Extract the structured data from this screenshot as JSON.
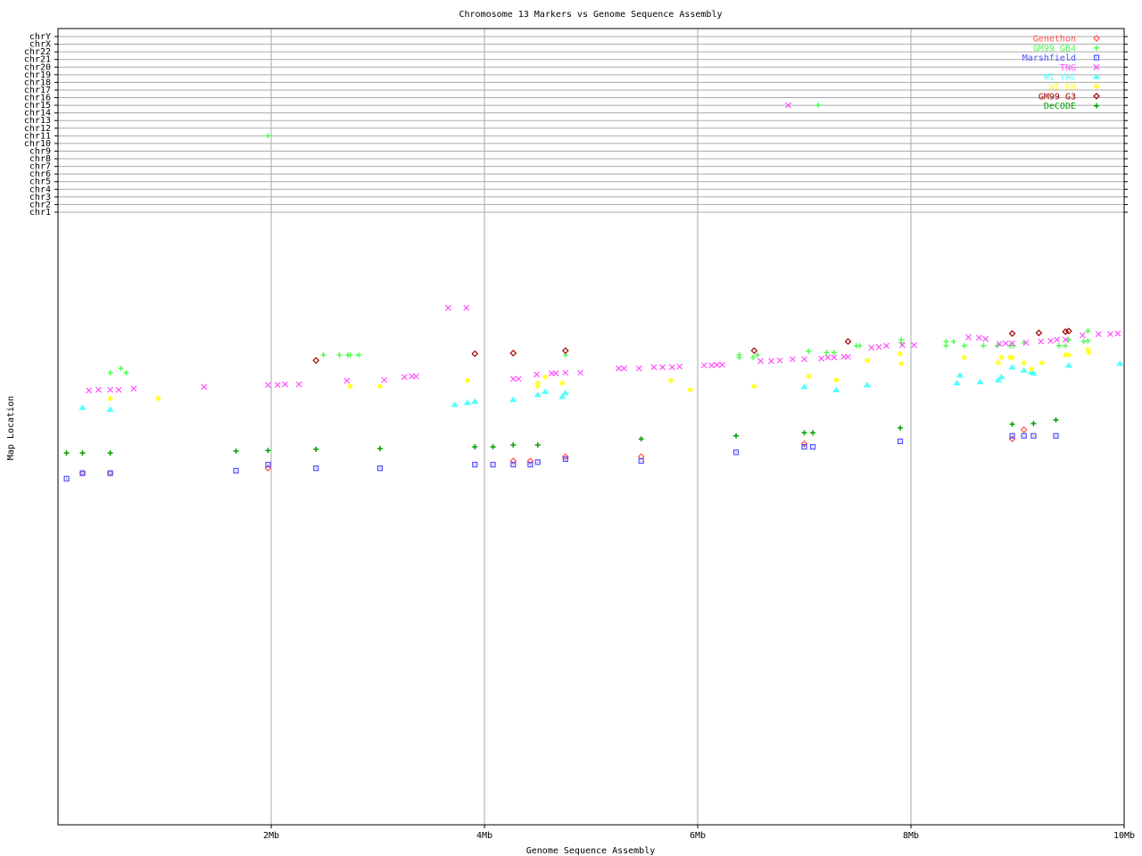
{
  "chart_data": {
    "type": "scatter",
    "title": "Chromosome 13 Markers vs Genome Sequence Assembly",
    "xlabel": "Genome Sequence Assembly",
    "ylabel": "Map Location",
    "xlim": [
      0,
      10
    ],
    "x_unit": "Mb",
    "x_ticks": [
      {
        "value": 2,
        "label": "2Mb"
      },
      {
        "value": 4,
        "label": "4Mb"
      },
      {
        "value": 6,
        "label": "6Mb"
      },
      {
        "value": 8,
        "label": "8Mb"
      },
      {
        "value": 10,
        "label": "10Mb"
      }
    ],
    "chromosome_rows": [
      "chrY",
      "chrX",
      "chr22",
      "chr21",
      "chr20",
      "chr19",
      "chr18",
      "chr17",
      "chr16",
      "chr15",
      "chr14",
      "chr13",
      "chr12",
      "chr11",
      "chr10",
      "chr9",
      "chr8",
      "chr7",
      "chr6",
      "chr5",
      "chr4",
      "chr3",
      "chr2",
      "chr1"
    ],
    "map_location_ylim": [
      0,
      100
    ],
    "grid": "vertical at x ticks; horizontal at chromosome rows",
    "legend_position": "top-right",
    "series": [
      {
        "name": "Genethon",
        "color": "#ff5050",
        "marker": "diamond",
        "points": [
          [
            0.23,
            57.4
          ],
          [
            0.49,
            57.4
          ],
          [
            1.97,
            58.2
          ],
          [
            4.27,
            59.4
          ],
          [
            4.43,
            59.4
          ],
          [
            4.76,
            60.1
          ],
          [
            5.47,
            60.1
          ],
          [
            7.0,
            62.2
          ],
          [
            8.95,
            63.0
          ],
          [
            9.06,
            64.5
          ]
        ]
      },
      {
        "name": "GM99 GB4",
        "color": "#50ff50",
        "marker": "plus",
        "points": [
          [
            0.49,
            73.8
          ],
          [
            0.59,
            74.5
          ],
          [
            0.64,
            73.8
          ],
          [
            2.49,
            76.7
          ],
          [
            2.64,
            76.7
          ],
          [
            2.72,
            76.7
          ],
          [
            2.74,
            76.7
          ],
          [
            2.82,
            76.7
          ],
          [
            4.76,
            76.7
          ],
          [
            6.39,
            76.7
          ],
          [
            6.39,
            76.3
          ],
          [
            6.52,
            76.3
          ],
          [
            6.56,
            76.7
          ],
          [
            7.04,
            77.3
          ],
          [
            7.21,
            77.1
          ],
          [
            7.28,
            77.1
          ],
          [
            7.49,
            78.2
          ],
          [
            7.52,
            78.2
          ],
          [
            7.91,
            79.2
          ],
          [
            7.91,
            78.7
          ],
          [
            8.33,
            78.9
          ],
          [
            8.33,
            78.2
          ],
          [
            8.4,
            78.9
          ],
          [
            8.5,
            78.2
          ],
          [
            8.68,
            78.2
          ],
          [
            8.81,
            78.2
          ],
          [
            8.93,
            78.2
          ],
          [
            8.96,
            78.2
          ],
          [
            9.06,
            78.7
          ],
          [
            9.39,
            78.2
          ],
          [
            9.45,
            78.2
          ],
          [
            9.48,
            79.2
          ],
          [
            9.62,
            78.9
          ],
          [
            9.66,
            80.6
          ],
          [
            9.66,
            79.0
          ]
        ],
        "chr_points": [
          {
            "x": 1.97,
            "chr": "chr11"
          },
          {
            "x": 7.13,
            "chr": "chr15"
          }
        ]
      },
      {
        "name": "Marshfield",
        "color": "#5050ff",
        "marker": "square",
        "points": [
          [
            0.08,
            56.5
          ],
          [
            0.23,
            57.4
          ],
          [
            0.49,
            57.4
          ],
          [
            1.67,
            57.8
          ],
          [
            1.97,
            58.8
          ],
          [
            2.42,
            58.2
          ],
          [
            3.02,
            58.2
          ],
          [
            3.91,
            58.8
          ],
          [
            4.08,
            58.8
          ],
          [
            4.27,
            58.8
          ],
          [
            4.43,
            58.8
          ],
          [
            4.5,
            59.2
          ],
          [
            4.76,
            59.7
          ],
          [
            5.47,
            59.4
          ],
          [
            6.36,
            60.8
          ],
          [
            7.0,
            61.7
          ],
          [
            7.08,
            61.7
          ],
          [
            7.9,
            62.6
          ],
          [
            8.95,
            63.5
          ],
          [
            9.06,
            63.5
          ],
          [
            9.15,
            63.5
          ],
          [
            9.36,
            63.5
          ]
        ]
      },
      {
        "name": "TNG",
        "color": "#ff50ff",
        "marker": "cross",
        "points": [
          [
            0.29,
            70.9
          ],
          [
            0.38,
            71.0
          ],
          [
            0.49,
            71.0
          ],
          [
            0.57,
            71.0
          ],
          [
            0.71,
            71.2
          ],
          [
            1.37,
            71.5
          ],
          [
            1.97,
            71.8
          ],
          [
            2.06,
            71.8
          ],
          [
            2.13,
            71.9
          ],
          [
            2.26,
            71.9
          ],
          [
            2.71,
            72.5
          ],
          [
            3.06,
            72.6
          ],
          [
            3.25,
            73.1
          ],
          [
            3.32,
            73.2
          ],
          [
            3.36,
            73.2
          ],
          [
            3.66,
            84.4
          ],
          [
            3.83,
            84.4
          ],
          [
            4.27,
            72.8
          ],
          [
            4.32,
            72.8
          ],
          [
            4.49,
            73.5
          ],
          [
            4.63,
            73.7
          ],
          [
            4.67,
            73.7
          ],
          [
            4.76,
            73.8
          ],
          [
            4.9,
            73.8
          ],
          [
            5.26,
            74.5
          ],
          [
            5.31,
            74.5
          ],
          [
            5.45,
            74.5
          ],
          [
            5.59,
            74.7
          ],
          [
            5.67,
            74.7
          ],
          [
            5.76,
            74.7
          ],
          [
            5.83,
            74.8
          ],
          [
            6.06,
            75.0
          ],
          [
            6.13,
            75.0
          ],
          [
            6.18,
            75.1
          ],
          [
            6.23,
            75.1
          ],
          [
            6.59,
            75.7
          ],
          [
            6.69,
            75.7
          ],
          [
            6.77,
            75.8
          ],
          [
            6.89,
            76.0
          ],
          [
            7.0,
            76.0
          ],
          [
            7.16,
            76.1
          ],
          [
            7.22,
            76.3
          ],
          [
            7.28,
            76.3
          ],
          [
            7.37,
            76.4
          ],
          [
            7.41,
            76.4
          ],
          [
            7.63,
            77.9
          ],
          [
            7.7,
            78.0
          ],
          [
            7.77,
            78.2
          ],
          [
            7.92,
            78.3
          ],
          [
            8.03,
            78.3
          ],
          [
            8.54,
            79.6
          ],
          [
            8.64,
            79.5
          ],
          [
            8.7,
            79.3
          ],
          [
            8.83,
            78.5
          ],
          [
            8.89,
            78.6
          ],
          [
            8.95,
            78.6
          ],
          [
            9.08,
            78.7
          ],
          [
            9.22,
            78.9
          ],
          [
            9.31,
            79.0
          ],
          [
            9.37,
            79.2
          ],
          [
            9.45,
            79.2
          ],
          [
            9.61,
            79.9
          ],
          [
            9.76,
            80.1
          ],
          [
            9.87,
            80.1
          ],
          [
            9.94,
            80.2
          ]
        ],
        "chr_points": [
          {
            "x": 6.85,
            "chr": "chr15"
          }
        ]
      },
      {
        "name": "WI YAC",
        "color": "#50ffff",
        "marker": "triangle",
        "points": [
          [
            0.23,
            68.1
          ],
          [
            0.49,
            67.8
          ],
          [
            3.72,
            68.6
          ],
          [
            3.84,
            68.9
          ],
          [
            3.91,
            69.1
          ],
          [
            4.27,
            69.4
          ],
          [
            4.5,
            70.2
          ],
          [
            4.57,
            70.7
          ],
          [
            4.73,
            69.9
          ],
          [
            4.76,
            70.5
          ],
          [
            7.0,
            71.5
          ],
          [
            7.3,
            71.0
          ],
          [
            7.59,
            71.8
          ],
          [
            8.43,
            72.1
          ],
          [
            8.46,
            73.4
          ],
          [
            8.65,
            72.3
          ],
          [
            8.82,
            72.6
          ],
          [
            8.85,
            73.1
          ],
          [
            8.95,
            74.7
          ],
          [
            9.06,
            74.2
          ],
          [
            9.13,
            73.9
          ],
          [
            9.15,
            73.7
          ],
          [
            9.48,
            75.0
          ],
          [
            9.96,
            75.3
          ]
        ]
      },
      {
        "name": "WI RH",
        "color": "#ffff30",
        "marker": "asterisk",
        "points": [
          [
            0.49,
            69.6
          ],
          [
            0.94,
            69.6
          ],
          [
            2.74,
            71.6
          ],
          [
            3.02,
            71.6
          ],
          [
            3.84,
            72.5
          ],
          [
            4.5,
            72.1
          ],
          [
            4.5,
            71.6
          ],
          [
            4.57,
            73.1
          ],
          [
            4.73,
            72.1
          ],
          [
            5.75,
            72.5
          ],
          [
            5.93,
            71.0
          ],
          [
            6.53,
            71.6
          ],
          [
            7.04,
            73.2
          ],
          [
            7.3,
            72.6
          ],
          [
            7.59,
            75.8
          ],
          [
            7.9,
            76.9
          ],
          [
            7.91,
            75.3
          ],
          [
            8.5,
            76.3
          ],
          [
            8.82,
            75.4
          ],
          [
            8.85,
            76.3
          ],
          [
            8.93,
            76.3
          ],
          [
            8.95,
            76.3
          ],
          [
            9.06,
            75.4
          ],
          [
            9.13,
            74.4
          ],
          [
            9.23,
            75.4
          ],
          [
            9.45,
            76.7
          ],
          [
            9.48,
            76.7
          ],
          [
            9.66,
            77.6
          ],
          [
            9.67,
            77.1
          ]
        ]
      },
      {
        "name": "GM99 G3",
        "color": "#a00000",
        "marker": "diamond",
        "points": [
          [
            2.42,
            75.8
          ],
          [
            3.91,
            76.9
          ],
          [
            4.27,
            77.0
          ],
          [
            4.76,
            77.4
          ],
          [
            6.53,
            77.4
          ],
          [
            7.41,
            78.9
          ],
          [
            8.95,
            80.2
          ],
          [
            9.2,
            80.3
          ],
          [
            9.45,
            80.5
          ],
          [
            9.48,
            80.6
          ]
        ]
      },
      {
        "name": "DeCODE",
        "color": "#00a000",
        "marker": "plus",
        "points": [
          [
            0.08,
            60.7
          ],
          [
            0.23,
            60.7
          ],
          [
            0.49,
            60.7
          ],
          [
            1.67,
            61.0
          ],
          [
            1.97,
            61.1
          ],
          [
            2.42,
            61.3
          ],
          [
            3.02,
            61.4
          ],
          [
            3.91,
            61.7
          ],
          [
            4.08,
            61.7
          ],
          [
            4.27,
            62.0
          ],
          [
            4.5,
            62.0
          ],
          [
            5.47,
            63.0
          ],
          [
            6.36,
            63.5
          ],
          [
            7.0,
            64.0
          ],
          [
            7.08,
            64.0
          ],
          [
            7.9,
            64.8
          ],
          [
            8.95,
            65.4
          ],
          [
            9.15,
            65.5
          ],
          [
            9.36,
            66.1
          ]
        ]
      }
    ]
  }
}
